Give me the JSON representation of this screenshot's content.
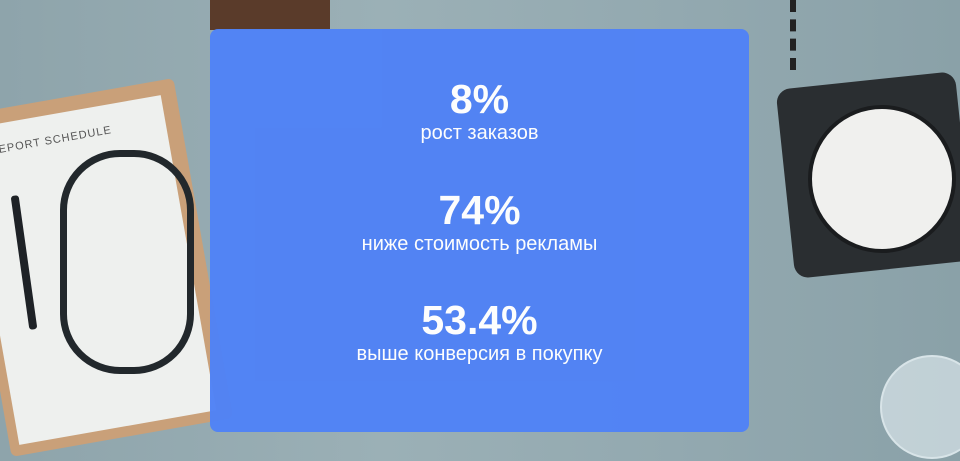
{
  "background": {
    "clipboard_text": "Y REPORT SCHEDULE"
  },
  "card": {
    "color": "#5183f5",
    "stats": [
      {
        "value": "8%",
        "label": "рост заказов"
      },
      {
        "value": "74%",
        "label": "ниже стоимость рекламы"
      },
      {
        "value": "53.4%",
        "label": "выше конверсия в покупку"
      }
    ]
  }
}
